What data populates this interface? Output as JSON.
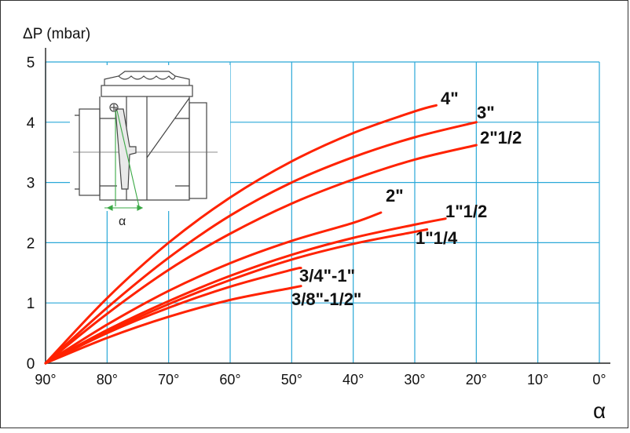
{
  "chart_data": {
    "type": "line",
    "ylabel": "ΔP (mbar)",
    "xlabel": "α",
    "x_ticks": [
      90,
      80,
      70,
      60,
      50,
      40,
      30,
      20,
      10,
      0
    ],
    "x_tick_labels": [
      "90°",
      "80°",
      "70°",
      "60°",
      "50°",
      "40°",
      "30°",
      "20°",
      "10°",
      "0°"
    ],
    "y_ticks": [
      0,
      1,
      2,
      3,
      4,
      5
    ],
    "y_tick_labels": [
      "0",
      "1",
      "2",
      "3",
      "4",
      "5"
    ],
    "xlim": [
      90,
      0
    ],
    "ylim": [
      0,
      5
    ],
    "grid": true,
    "grid_color": "#2aa8d8",
    "line_color": "#ff2200",
    "series": [
      {
        "name": "4\"",
        "points": [
          [
            90,
            0
          ],
          [
            80,
            1.08
          ],
          [
            70,
            2.0
          ],
          [
            60,
            2.75
          ],
          [
            50,
            3.35
          ],
          [
            40,
            3.82
          ],
          [
            30,
            4.18
          ],
          [
            26.5,
            4.28
          ]
        ]
      },
      {
        "name": "3\"",
        "points": [
          [
            90,
            0
          ],
          [
            80,
            0.92
          ],
          [
            70,
            1.75
          ],
          [
            60,
            2.45
          ],
          [
            50,
            3.0
          ],
          [
            40,
            3.42
          ],
          [
            30,
            3.75
          ],
          [
            20,
            4.0
          ]
        ]
      },
      {
        "name": "2\"1/2",
        "points": [
          [
            90,
            0
          ],
          [
            80,
            0.82
          ],
          [
            70,
            1.55
          ],
          [
            60,
            2.15
          ],
          [
            50,
            2.65
          ],
          [
            40,
            3.05
          ],
          [
            30,
            3.38
          ],
          [
            20,
            3.62
          ]
        ]
      },
      {
        "name": "2\"",
        "points": [
          [
            90,
            0
          ],
          [
            80,
            0.64
          ],
          [
            70,
            1.2
          ],
          [
            60,
            1.66
          ],
          [
            50,
            2.03
          ],
          [
            40,
            2.33
          ],
          [
            35.5,
            2.5
          ]
        ]
      },
      {
        "name": "1\"1/2",
        "points": [
          [
            90,
            0
          ],
          [
            80,
            0.55
          ],
          [
            70,
            1.03
          ],
          [
            60,
            1.45
          ],
          [
            50,
            1.8
          ],
          [
            40,
            2.08
          ],
          [
            30,
            2.3
          ],
          [
            25,
            2.4
          ]
        ]
      },
      {
        "name": "1\"1/4",
        "points": [
          [
            90,
            0
          ],
          [
            80,
            0.52
          ],
          [
            70,
            0.98
          ],
          [
            60,
            1.38
          ],
          [
            50,
            1.72
          ],
          [
            40,
            1.98
          ],
          [
            30,
            2.18
          ],
          [
            28,
            2.22
          ]
        ]
      },
      {
        "name": "3/4\"-1\"",
        "points": [
          [
            90,
            0
          ],
          [
            80,
            0.5
          ],
          [
            70,
            0.92
          ],
          [
            60,
            1.27
          ],
          [
            50,
            1.55
          ],
          [
            48.5,
            1.58
          ]
        ]
      },
      {
        "name": "3/8\"-1/2\"",
        "points": [
          [
            90,
            0
          ],
          [
            80,
            0.42
          ],
          [
            70,
            0.77
          ],
          [
            60,
            1.05
          ],
          [
            50,
            1.25
          ],
          [
            48.5,
            1.28
          ]
        ]
      }
    ]
  },
  "inset": {
    "angle_label": "α",
    "icon": "valve-cross-section-icon"
  }
}
